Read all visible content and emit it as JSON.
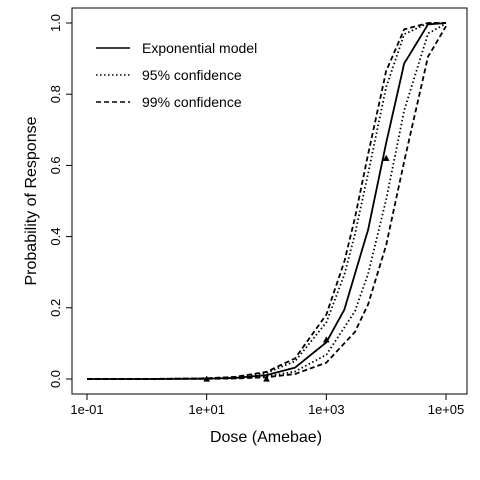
{
  "chart_data": {
    "type": "line",
    "title": "",
    "xlabel": "Dose (Amebae)",
    "ylabel": "Probability of Response",
    "x_scale": "log10",
    "xlim": [
      0.1,
      100000
    ],
    "ylim": [
      0,
      1
    ],
    "x_ticks": [
      0.1,
      10,
      1000,
      100000
    ],
    "x_tick_labels": [
      "1e-01",
      "1e+01",
      "1e+03",
      "1e+05"
    ],
    "y_ticks": [
      0,
      0.2,
      0.4,
      0.6,
      0.8,
      1
    ],
    "y_tick_labels": [
      "0.0",
      "0.2",
      "0.4",
      "0.6",
      "0.8",
      "1.0"
    ],
    "grid": false,
    "legend_position": "top-left",
    "series": [
      {
        "name": "Exponential model",
        "linestyle": "solid",
        "x": [
          0.1,
          1,
          10,
          30,
          100,
          300,
          1000,
          2000,
          5000,
          10000,
          20000,
          50000,
          100000
        ],
        "y": [
          0,
          0,
          0.001,
          0.003,
          0.011,
          0.032,
          0.103,
          0.195,
          0.42,
          0.663,
          0.886,
          0.996,
          1.0
        ]
      },
      {
        "name": "95% confidence",
        "linestyle": "dotted",
        "x": [
          0.1,
          1,
          10,
          30,
          100,
          300,
          1000,
          2000,
          3000,
          5000,
          10000,
          20000,
          50000,
          100000
        ],
        "y": [
          0,
          0,
          0.002,
          0.005,
          0.017,
          0.05,
          0.159,
          0.293,
          0.406,
          0.578,
          0.82,
          0.968,
          1.0,
          1.0
        ]
      },
      {
        "name": "95% confidence",
        "linestyle": "dotted",
        "x": [
          0.1,
          1,
          10,
          30,
          100,
          300,
          1000,
          3000,
          5000,
          10000,
          20000,
          50000,
          100000
        ],
        "y": [
          0,
          0,
          0.0007,
          0.002,
          0.007,
          0.021,
          0.068,
          0.19,
          0.296,
          0.504,
          0.754,
          0.97,
          0.999
        ]
      },
      {
        "name": "99% confidence",
        "linestyle": "dashed",
        "x": [
          0.1,
          1,
          10,
          30,
          100,
          300,
          1000,
          2000,
          3000,
          5000,
          10000,
          20000,
          50000,
          100000
        ],
        "y": [
          0,
          0,
          0.002,
          0.006,
          0.02,
          0.058,
          0.181,
          0.33,
          0.452,
          0.632,
          0.865,
          0.982,
          1.0,
          1.0
        ]
      },
      {
        "name": "99% confidence",
        "linestyle": "dashed",
        "x": [
          0.1,
          1,
          10,
          30,
          100,
          300,
          1000,
          3000,
          5000,
          10000,
          20000,
          50000,
          100000
        ],
        "y": [
          0,
          0,
          0.0005,
          0.0014,
          0.005,
          0.014,
          0.046,
          0.132,
          0.21,
          0.376,
          0.611,
          0.905,
          0.991
        ]
      }
    ],
    "observed_points": {
      "marker": "triangle",
      "x": [
        10,
        100,
        1000,
        10000
      ],
      "y": [
        0.0,
        0.0,
        0.11,
        0.62
      ]
    }
  },
  "legend": {
    "items": [
      {
        "label": "Exponential model",
        "linestyle": "solid"
      },
      {
        "label": "95% confidence",
        "linestyle": "dotted"
      },
      {
        "label": "99% confidence",
        "linestyle": "dashed"
      }
    ]
  }
}
